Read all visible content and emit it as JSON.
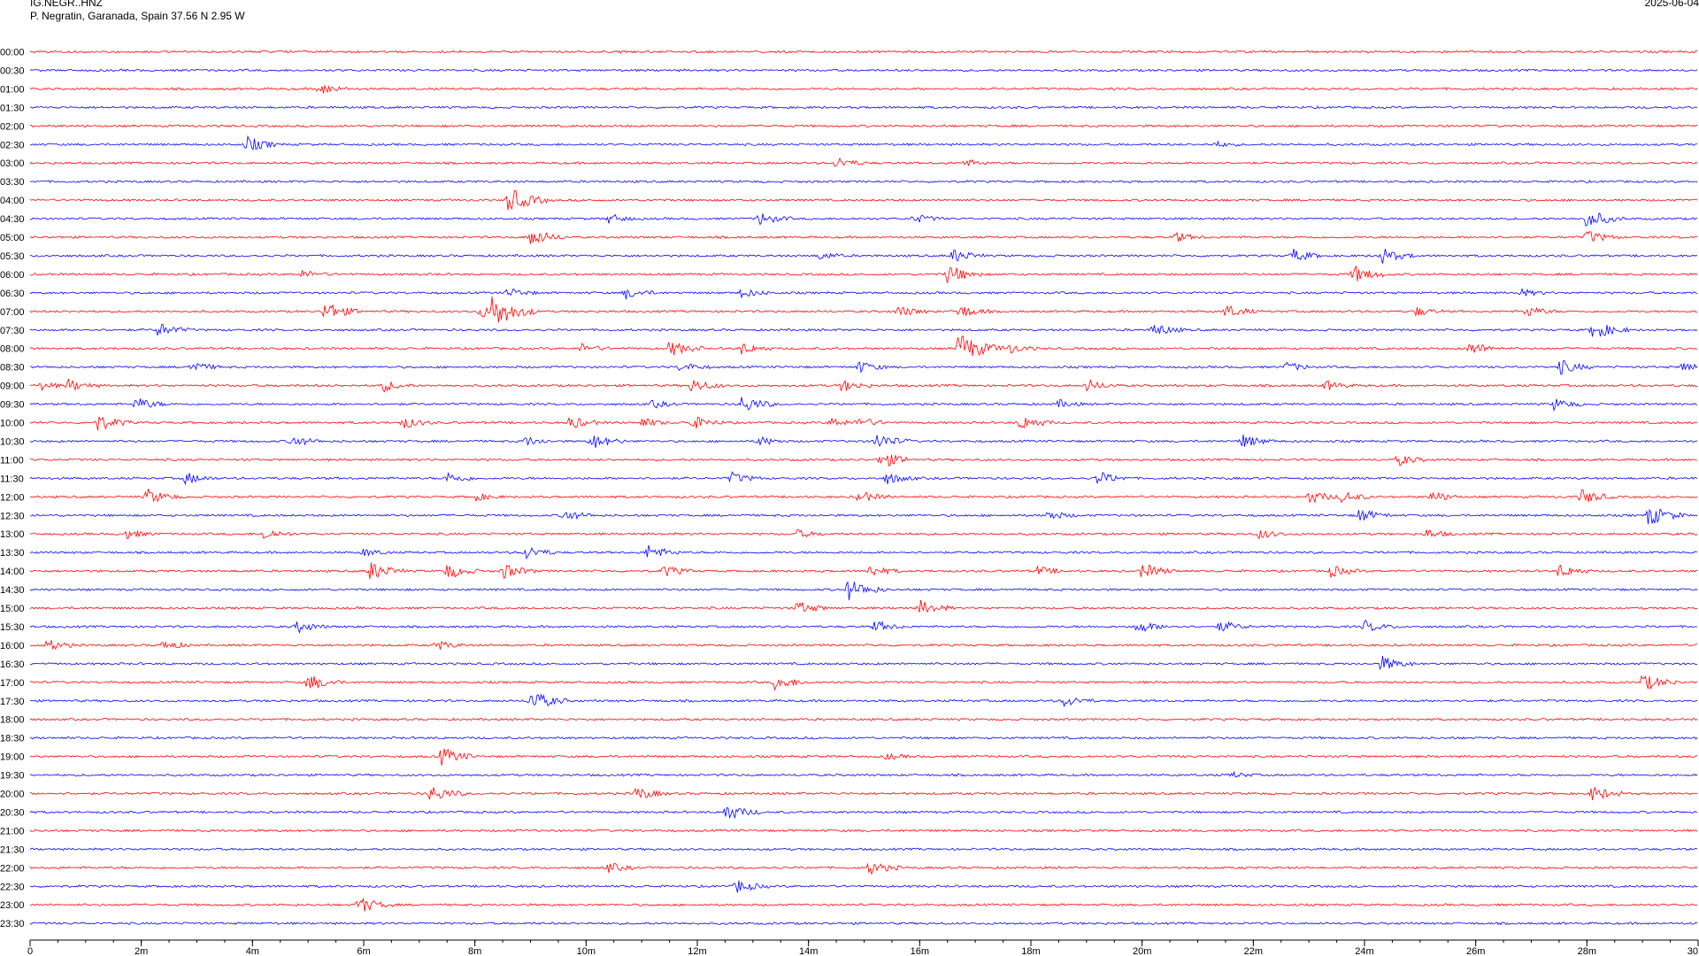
{
  "header": {
    "station_code": "IG.NEGR..HNZ",
    "location": "P. Negratin, Garanada, Spain  37.56 N 2.95 W",
    "date": "2025-06-04"
  },
  "colors": {
    "trace_a": "#ff0000",
    "trace_b": "#0000ff",
    "axis": "#000000",
    "background": "#ffffff"
  },
  "chart_data": {
    "type": "line",
    "title": "",
    "xlabel": "",
    "ylabel": "",
    "xlim": [
      0,
      30
    ],
    "x_tick_labels": [
      "0",
      "2m",
      "4m",
      "6m",
      "8m",
      "10m",
      "12m",
      "14m",
      "16m",
      "18m",
      "20m",
      "22m",
      "24m",
      "26m",
      "28m",
      "30"
    ],
    "x_tick_values": [
      0,
      2,
      4,
      6,
      8,
      10,
      12,
      14,
      16,
      18,
      20,
      22,
      24,
      26,
      28,
      30
    ],
    "minor_tick_step": 0.5,
    "row_labels": [
      "00:00",
      "00:30",
      "01:00",
      "01:30",
      "02:00",
      "02:30",
      "03:00",
      "03:30",
      "04:00",
      "04:30",
      "05:00",
      "05:30",
      "06:00",
      "06:30",
      "07:00",
      "07:30",
      "08:00",
      "08:30",
      "09:00",
      "09:30",
      "10:00",
      "10:30",
      "11:00",
      "11:30",
      "12:00",
      "12:30",
      "13:00",
      "13:30",
      "14:00",
      "14:30",
      "15:00",
      "15:30",
      "16:00",
      "16:30",
      "17:00",
      "17:30",
      "18:00",
      "18:30",
      "19:00",
      "19:30",
      "20:00",
      "20:30",
      "21:00",
      "21:30",
      "22:00",
      "22:30",
      "23:00",
      "23:30"
    ],
    "row_colors": [
      "red",
      "blue"
    ],
    "events": [
      {
        "row": 2,
        "minute": 5.2,
        "amp": 0.6
      },
      {
        "row": 5,
        "minute": 3.9,
        "amp": 0.8
      },
      {
        "row": 5,
        "minute": 21.3,
        "amp": 0.3
      },
      {
        "row": 6,
        "minute": 14.5,
        "amp": 0.6
      },
      {
        "row": 6,
        "minute": 16.8,
        "amp": 0.4
      },
      {
        "row": 8,
        "minute": 8.6,
        "amp": 1.3
      },
      {
        "row": 9,
        "minute": 10.4,
        "amp": 0.5
      },
      {
        "row": 9,
        "minute": 13.1,
        "amp": 0.7
      },
      {
        "row": 9,
        "minute": 15.9,
        "amp": 0.5
      },
      {
        "row": 9,
        "minute": 28.0,
        "amp": 1.0
      },
      {
        "row": 10,
        "minute": 9.0,
        "amp": 0.9
      },
      {
        "row": 10,
        "minute": 20.6,
        "amp": 0.5
      },
      {
        "row": 10,
        "minute": 28.0,
        "amp": 0.7
      },
      {
        "row": 11,
        "minute": 14.2,
        "amp": 0.4
      },
      {
        "row": 11,
        "minute": 16.6,
        "amp": 0.7
      },
      {
        "row": 11,
        "minute": 22.7,
        "amp": 0.7
      },
      {
        "row": 11,
        "minute": 24.3,
        "amp": 0.8
      },
      {
        "row": 12,
        "minute": 4.9,
        "amp": 0.4
      },
      {
        "row": 12,
        "minute": 16.5,
        "amp": 1.0
      },
      {
        "row": 12,
        "minute": 23.8,
        "amp": 0.9
      },
      {
        "row": 13,
        "minute": 8.6,
        "amp": 0.5
      },
      {
        "row": 13,
        "minute": 10.7,
        "amp": 0.6
      },
      {
        "row": 13,
        "minute": 12.8,
        "amp": 0.5
      },
      {
        "row": 13,
        "minute": 26.8,
        "amp": 0.4
      },
      {
        "row": 14,
        "minute": 5.3,
        "amp": 1.0
      },
      {
        "row": 14,
        "minute": 8.1,
        "amp": 0.6
      },
      {
        "row": 14,
        "minute": 8.3,
        "amp": 1.6
      },
      {
        "row": 14,
        "minute": 15.6,
        "amp": 0.6
      },
      {
        "row": 14,
        "minute": 16.7,
        "amp": 0.7
      },
      {
        "row": 14,
        "minute": 21.5,
        "amp": 0.7
      },
      {
        "row": 14,
        "minute": 24.9,
        "amp": 0.5
      },
      {
        "row": 14,
        "minute": 26.9,
        "amp": 0.6
      },
      {
        "row": 15,
        "minute": 2.3,
        "amp": 0.7
      },
      {
        "row": 15,
        "minute": 20.2,
        "amp": 0.7
      },
      {
        "row": 15,
        "minute": 28.1,
        "amp": 1.0
      },
      {
        "row": 16,
        "minute": 9.9,
        "amp": 0.5
      },
      {
        "row": 16,
        "minute": 11.5,
        "amp": 0.8
      },
      {
        "row": 16,
        "minute": 12.8,
        "amp": 0.6
      },
      {
        "row": 16,
        "minute": 16.7,
        "amp": 1.6
      },
      {
        "row": 16,
        "minute": 17.6,
        "amp": 0.5
      },
      {
        "row": 16,
        "minute": 25.9,
        "amp": 0.7
      },
      {
        "row": 17,
        "minute": 2.9,
        "amp": 0.6
      },
      {
        "row": 17,
        "minute": 11.7,
        "amp": 0.5
      },
      {
        "row": 17,
        "minute": 14.9,
        "amp": 0.6
      },
      {
        "row": 17,
        "minute": 22.6,
        "amp": 0.5
      },
      {
        "row": 17,
        "minute": 27.5,
        "amp": 0.8
      },
      {
        "row": 17,
        "minute": 29.7,
        "amp": 0.5
      },
      {
        "row": 18,
        "minute": 0.2,
        "amp": 0.4
      },
      {
        "row": 18,
        "minute": 0.7,
        "amp": 0.6
      },
      {
        "row": 18,
        "minute": 6.3,
        "amp": 0.7
      },
      {
        "row": 18,
        "minute": 11.9,
        "amp": 0.7
      },
      {
        "row": 18,
        "minute": 14.6,
        "amp": 0.6
      },
      {
        "row": 18,
        "minute": 19.0,
        "amp": 0.6
      },
      {
        "row": 18,
        "minute": 23.3,
        "amp": 0.5
      },
      {
        "row": 19,
        "minute": 1.9,
        "amp": 0.7
      },
      {
        "row": 19,
        "minute": 11.2,
        "amp": 0.4
      },
      {
        "row": 19,
        "minute": 12.8,
        "amp": 0.9
      },
      {
        "row": 19,
        "minute": 18.5,
        "amp": 0.4
      },
      {
        "row": 19,
        "minute": 27.4,
        "amp": 0.6
      },
      {
        "row": 20,
        "minute": 1.2,
        "amp": 0.9
      },
      {
        "row": 20,
        "minute": 6.7,
        "amp": 0.6
      },
      {
        "row": 20,
        "minute": 9.7,
        "amp": 0.7
      },
      {
        "row": 20,
        "minute": 11.0,
        "amp": 0.5
      },
      {
        "row": 20,
        "minute": 11.9,
        "amp": 0.7
      },
      {
        "row": 20,
        "minute": 14.4,
        "amp": 0.5
      },
      {
        "row": 20,
        "minute": 14.9,
        "amp": 0.6
      },
      {
        "row": 20,
        "minute": 17.8,
        "amp": 0.8
      },
      {
        "row": 21,
        "minute": 4.7,
        "amp": 0.6
      },
      {
        "row": 21,
        "minute": 8.9,
        "amp": 0.5
      },
      {
        "row": 21,
        "minute": 10.1,
        "amp": 0.8
      },
      {
        "row": 21,
        "minute": 13.1,
        "amp": 0.5
      },
      {
        "row": 21,
        "minute": 15.2,
        "amp": 0.9
      },
      {
        "row": 21,
        "minute": 21.8,
        "amp": 0.7
      },
      {
        "row": 22,
        "minute": 15.3,
        "amp": 0.9
      },
      {
        "row": 22,
        "minute": 24.6,
        "amp": 0.6
      },
      {
        "row": 23,
        "minute": 2.8,
        "amp": 0.6
      },
      {
        "row": 23,
        "minute": 7.5,
        "amp": 0.6
      },
      {
        "row": 23,
        "minute": 12.6,
        "amp": 0.6
      },
      {
        "row": 23,
        "minute": 15.4,
        "amp": 0.6
      },
      {
        "row": 23,
        "minute": 19.2,
        "amp": 0.7
      },
      {
        "row": 24,
        "minute": 2.1,
        "amp": 0.8
      },
      {
        "row": 24,
        "minute": 8.0,
        "amp": 0.4
      },
      {
        "row": 24,
        "minute": 14.9,
        "amp": 0.6
      },
      {
        "row": 24,
        "minute": 23.0,
        "amp": 0.7
      },
      {
        "row": 24,
        "minute": 23.6,
        "amp": 0.6
      },
      {
        "row": 24,
        "minute": 25.2,
        "amp": 0.6
      },
      {
        "row": 24,
        "minute": 27.9,
        "amp": 0.8
      },
      {
        "row": 25,
        "minute": 9.6,
        "amp": 0.6
      },
      {
        "row": 25,
        "minute": 18.3,
        "amp": 0.5
      },
      {
        "row": 25,
        "minute": 23.9,
        "amp": 0.7
      },
      {
        "row": 25,
        "minute": 29.1,
        "amp": 1.1
      },
      {
        "row": 26,
        "minute": 1.7,
        "amp": 0.5
      },
      {
        "row": 26,
        "minute": 4.2,
        "amp": 0.6
      },
      {
        "row": 26,
        "minute": 13.8,
        "amp": 0.4
      },
      {
        "row": 26,
        "minute": 22.1,
        "amp": 0.5
      },
      {
        "row": 26,
        "minute": 25.1,
        "amp": 0.5
      },
      {
        "row": 27,
        "minute": 6.0,
        "amp": 0.4
      },
      {
        "row": 27,
        "minute": 8.9,
        "amp": 0.7
      },
      {
        "row": 27,
        "minute": 11.1,
        "amp": 0.8
      },
      {
        "row": 28,
        "minute": 6.1,
        "amp": 1.0
      },
      {
        "row": 28,
        "minute": 7.5,
        "amp": 0.8
      },
      {
        "row": 28,
        "minute": 8.5,
        "amp": 0.8
      },
      {
        "row": 28,
        "minute": 11.4,
        "amp": 0.6
      },
      {
        "row": 28,
        "minute": 15.1,
        "amp": 0.6
      },
      {
        "row": 28,
        "minute": 18.1,
        "amp": 0.5
      },
      {
        "row": 28,
        "minute": 20.0,
        "amp": 0.8
      },
      {
        "row": 28,
        "minute": 23.4,
        "amp": 0.6
      },
      {
        "row": 28,
        "minute": 27.5,
        "amp": 0.7
      },
      {
        "row": 29,
        "minute": 14.7,
        "amp": 1.1
      },
      {
        "row": 30,
        "minute": 13.8,
        "amp": 0.7
      },
      {
        "row": 30,
        "minute": 16.0,
        "amp": 0.8
      },
      {
        "row": 31,
        "minute": 4.8,
        "amp": 0.6
      },
      {
        "row": 31,
        "minute": 15.2,
        "amp": 0.6
      },
      {
        "row": 31,
        "minute": 19.9,
        "amp": 0.7
      },
      {
        "row": 31,
        "minute": 21.4,
        "amp": 0.6
      },
      {
        "row": 31,
        "minute": 24.0,
        "amp": 0.6
      },
      {
        "row": 32,
        "minute": 0.3,
        "amp": 0.6
      },
      {
        "row": 32,
        "minute": 2.4,
        "amp": 0.5
      },
      {
        "row": 32,
        "minute": 7.3,
        "amp": 0.5
      },
      {
        "row": 33,
        "minute": 24.3,
        "amp": 0.8
      },
      {
        "row": 34,
        "minute": 5.0,
        "amp": 0.9
      },
      {
        "row": 34,
        "minute": 13.4,
        "amp": 0.8
      },
      {
        "row": 34,
        "minute": 29.0,
        "amp": 0.9
      },
      {
        "row": 35,
        "minute": 9.0,
        "amp": 1.1
      },
      {
        "row": 35,
        "minute": 18.6,
        "amp": 0.6
      },
      {
        "row": 38,
        "minute": 7.4,
        "amp": 0.9
      },
      {
        "row": 38,
        "minute": 15.4,
        "amp": 0.3
      },
      {
        "row": 39,
        "minute": 21.6,
        "amp": 0.3
      },
      {
        "row": 40,
        "minute": 7.2,
        "amp": 0.9
      },
      {
        "row": 40,
        "minute": 10.9,
        "amp": 0.7
      },
      {
        "row": 40,
        "minute": 28.1,
        "amp": 0.8
      },
      {
        "row": 41,
        "minute": 12.5,
        "amp": 0.9
      },
      {
        "row": 44,
        "minute": 10.4,
        "amp": 0.5
      },
      {
        "row": 44,
        "minute": 15.1,
        "amp": 0.7
      },
      {
        "row": 45,
        "minute": 12.7,
        "amp": 0.7
      },
      {
        "row": 46,
        "minute": 5.9,
        "amp": 0.9
      }
    ]
  }
}
